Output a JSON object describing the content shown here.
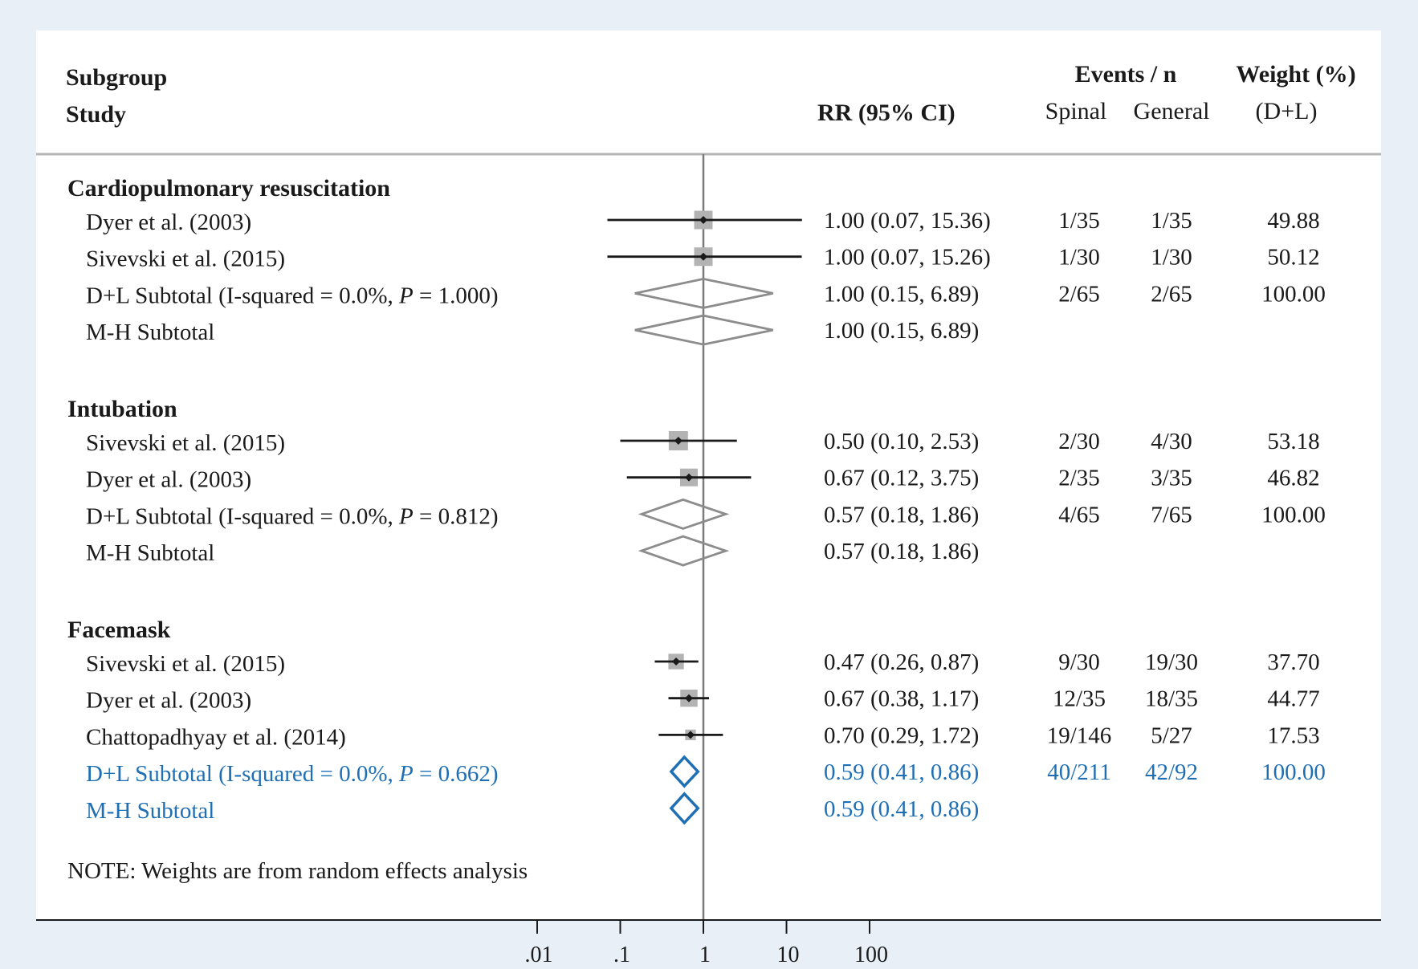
{
  "colors": {
    "background": "#e8eff7",
    "panel": "#ffffff",
    "text": "#1a1a1a",
    "highlight": "#1f6fb5",
    "diamond_gray": "#8c8c8c",
    "weight_box": "#b3b3b3"
  },
  "header": {
    "subgroup": "Subgroup",
    "study": "Study",
    "rr_ci": "RR (95% CI)",
    "events_n": "Events / n",
    "spinal": "Spinal",
    "general": "General",
    "weight": "Weight (%)",
    "weight_method": "(D+L)"
  },
  "note": "NOTE: Weights are from random effects analysis",
  "chart_data": {
    "type": "forest",
    "measure": "RR",
    "x_scale": "log",
    "null_line": 1,
    "x_ticks": [
      0.01,
      0.1,
      1,
      10,
      100
    ],
    "x_tick_labels": [
      ".01",
      ".1",
      "1",
      "10",
      "100"
    ],
    "groups": [
      {
        "title": "Cardiopulmonary resuscitation",
        "highlight": false,
        "rows": [
          {
            "kind": "study",
            "label": "Dyer et al. (2003)",
            "rr": 1.0,
            "lo": 0.07,
            "hi": 15.36,
            "ci_text": "1.00 (0.07, 15.36)",
            "spinal": "1/35",
            "general": "1/35",
            "weight": "49.88"
          },
          {
            "kind": "study",
            "label": "Sivevski et al. (2015)",
            "rr": 1.0,
            "lo": 0.07,
            "hi": 15.26,
            "ci_text": "1.00 (0.07, 15.26)",
            "spinal": "1/30",
            "general": "1/30",
            "weight": "50.12"
          },
          {
            "kind": "subtotal",
            "label": "D+L Subtotal  (I-squared = 0.0%, ",
            "p_label": "P",
            "p_value": " = 1.000)",
            "rr": 1.0,
            "lo": 0.15,
            "hi": 6.89,
            "ci_text": "1.00 (0.15, 6.89)",
            "spinal": "2/65",
            "general": "2/65",
            "weight": "100.00"
          },
          {
            "kind": "subtotal",
            "label": "M-H Subtotal",
            "rr": 1.0,
            "lo": 0.15,
            "hi": 6.89,
            "ci_text": "1.00 (0.15, 6.89)",
            "spinal": "",
            "general": "",
            "weight": ""
          }
        ]
      },
      {
        "title": "Intubation",
        "highlight": false,
        "rows": [
          {
            "kind": "study",
            "label": "Sivevski et al. (2015)",
            "rr": 0.5,
            "lo": 0.1,
            "hi": 2.53,
            "ci_text": "0.50 (0.10, 2.53)",
            "spinal": "2/30",
            "general": "4/30",
            "weight": "53.18"
          },
          {
            "kind": "study",
            "label": "Dyer et al. (2003)",
            "rr": 0.67,
            "lo": 0.12,
            "hi": 3.75,
            "ci_text": "0.67 (0.12, 3.75)",
            "spinal": "2/35",
            "general": "3/35",
            "weight": "46.82"
          },
          {
            "kind": "subtotal",
            "label": "D+L Subtotal  (I-squared = 0.0%, ",
            "p_label": "P",
            "p_value": " = 0.812)",
            "rr": 0.57,
            "lo": 0.18,
            "hi": 1.86,
            "ci_text": "0.57 (0.18, 1.86)",
            "spinal": "4/65",
            "general": "7/65",
            "weight": "100.00"
          },
          {
            "kind": "subtotal",
            "label": "M-H Subtotal",
            "rr": 0.57,
            "lo": 0.18,
            "hi": 1.86,
            "ci_text": "0.57 (0.18, 1.86)",
            "spinal": "",
            "general": "",
            "weight": ""
          }
        ]
      },
      {
        "title": "Facemask",
        "highlight": true,
        "rows": [
          {
            "kind": "study",
            "label": "Sivevski et al. (2015)",
            "rr": 0.47,
            "lo": 0.26,
            "hi": 0.87,
            "ci_text": "0.47 (0.26, 0.87)",
            "spinal": "9/30",
            "general": "19/30",
            "weight": "37.70"
          },
          {
            "kind": "study",
            "label": "Dyer et al. (2003)",
            "rr": 0.67,
            "lo": 0.38,
            "hi": 1.17,
            "ci_text": "0.67 (0.38, 1.17)",
            "spinal": "12/35",
            "general": "18/35",
            "weight": "44.77"
          },
          {
            "kind": "study",
            "label": "Chattopadhyay et al. (2014)",
            "rr": 0.7,
            "lo": 0.29,
            "hi": 1.72,
            "ci_text": "0.70 (0.29, 1.72)",
            "spinal": "19/146",
            "general": "5/27",
            "weight": "17.53"
          },
          {
            "kind": "subtotal",
            "label": "D+L Subtotal  (I-squared = 0.0%, ",
            "p_label": "P",
            "p_value": " = 0.662)",
            "rr": 0.59,
            "lo": 0.41,
            "hi": 0.86,
            "ci_text": "0.59 (0.41, 0.86)",
            "spinal": "40/211",
            "general": "42/92",
            "weight": "100.00"
          },
          {
            "kind": "subtotal",
            "label": "M-H Subtotal",
            "rr": 0.59,
            "lo": 0.41,
            "hi": 0.86,
            "ci_text": "0.59 (0.41, 0.86)",
            "spinal": "",
            "general": "",
            "weight": ""
          }
        ]
      }
    ]
  }
}
